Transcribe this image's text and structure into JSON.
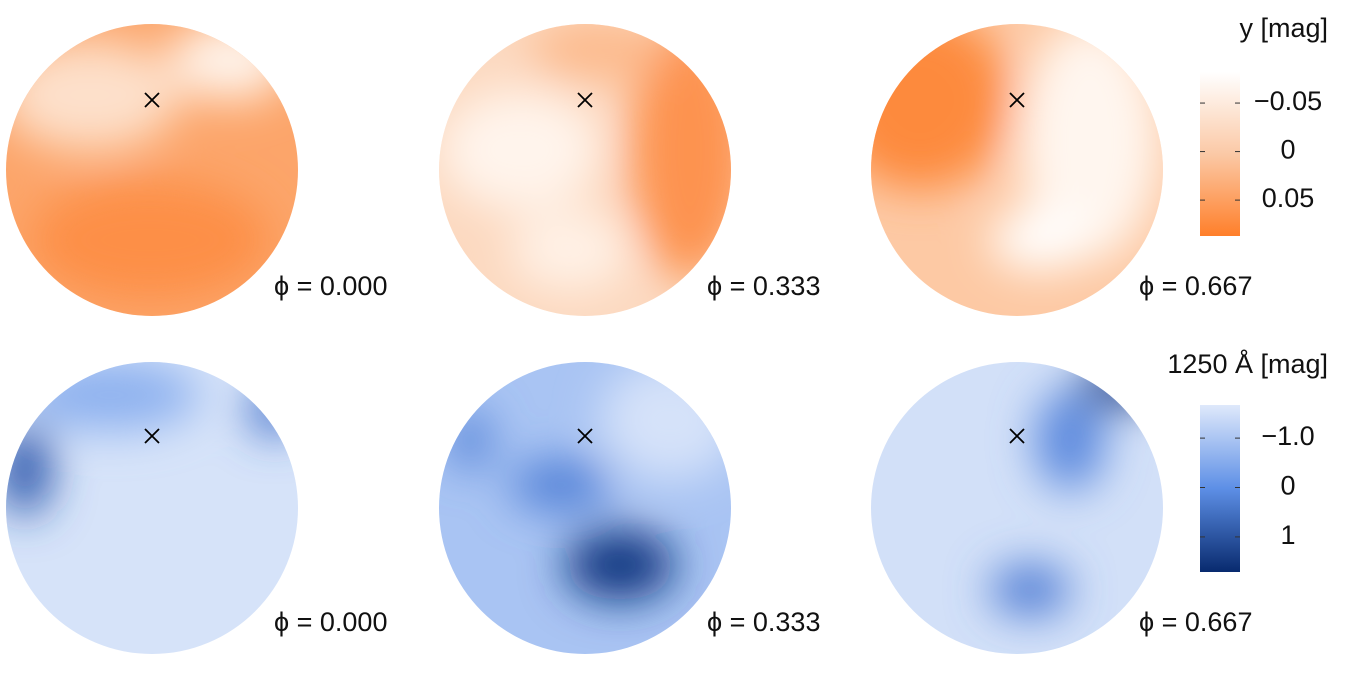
{
  "chart_data": [
    {
      "type": "disk-map",
      "colorbar_label": "y [mag]",
      "phase_labels": [
        "ϕ = 0.000",
        "ϕ = 0.333",
        "ϕ = 0.667"
      ],
      "clim": [
        -0.082,
        0.087
      ],
      "cticks": [
        {
          "value": -0.05,
          "label": "−0.05"
        },
        0,
        0.05
      ],
      "colors": [
        "#ffffff",
        "#fbc9a6",
        "#ff7f2a"
      ]
    },
    {
      "type": "disk-map",
      "colorbar_label": "1250 Å [mag]",
      "phase_labels": [
        "ϕ = 0.000",
        "ϕ = 0.333",
        "ϕ = 0.667"
      ],
      "clim": [
        -1.67,
        1.71
      ],
      "cticks": [
        {
          "value": -1.0,
          "label": "−1.0"
        },
        0,
        1.0
      ],
      "colors": [
        "#dfe9fb",
        "#5d8fe6",
        "#082a6e"
      ]
    }
  ]
}
